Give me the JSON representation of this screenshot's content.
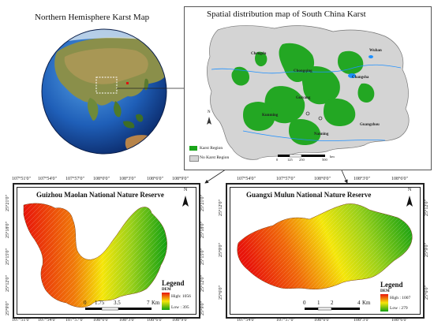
{
  "globe_panel": {
    "title": "Northern Hemisphere Karst Map"
  },
  "china_panel": {
    "title": "Spatial distribution map of South China Karst",
    "cities": [
      "Chengdu",
      "Wuhan",
      "Chongqing",
      "Changsha",
      "Guiyang",
      "Kunming",
      "Nanning",
      "Guangzhou"
    ],
    "legend": {
      "karst": "Karst Region",
      "non_karst": "No Karst Region"
    },
    "scale": {
      "labels": [
        "0",
        "125",
        "250",
        "500"
      ],
      "unit": "km"
    },
    "north": "N",
    "colors": {
      "karst": "#1aa51a",
      "non_karst": "#d4d4d4",
      "water": "#1e90ff"
    }
  },
  "guizhou_panel": {
    "title": "Guizhou Maolan National Nature Reserve",
    "top_ticks": [
      "107°51'0\"",
      "107°54'0\"",
      "107°57'0\"",
      "108°0'0\"",
      "108°3'0\"",
      "108°6'0\"",
      "108°9'0\""
    ],
    "bottom_ticks": [
      "107°51'0\"",
      "107°54'0\"",
      "107°57'0\"",
      "108°0'0\"",
      "108°3'0\"",
      "108°6'0\"",
      "108°9'0\""
    ],
    "left_ticks": [
      "25°21'0\"",
      "25°18'0\"",
      "25°15'0\"",
      "25°12'0\"",
      "25°9'0\""
    ],
    "right_ticks": [
      "25°21'0\"",
      "25°18'0\"",
      "25°15'0\"",
      "25°12'0\"",
      "25°9'0\""
    ],
    "legend": {
      "title": "Legend",
      "dem": "DEM",
      "high": "High: 1056",
      "low": "Low : 395"
    },
    "scale": {
      "labels": [
        "0",
        "1.75",
        "3.5",
        "7"
      ],
      "unit": "Km"
    },
    "north": "N"
  },
  "guangxi_panel": {
    "title": "Guangxi Mulun National Nature Reserve",
    "top_ticks": [
      "107°54'0\"",
      "107°57'0\"",
      "108°0'0\"",
      "108°3'0\"",
      "108°6'0\""
    ],
    "bottom_ticks": [
      "107°54'0\"",
      "107°57'0\"",
      "108°0'0\"",
      "108°3'0\"",
      "108°6'0\""
    ],
    "left_ticks": [
      "25°12'0\"",
      "25°9'0\"",
      "25°6'0\""
    ],
    "right_ticks": [
      "25°12'0\"",
      "25°9'0\"",
      "25°6'0\""
    ],
    "legend": {
      "title": "Legend",
      "dem": "DEM",
      "high": "High : 1007",
      "low": "Low : 279"
    },
    "scale": {
      "labels": [
        "0",
        "1",
        "2",
        "4"
      ],
      "unit": "Km"
    },
    "north": "N",
    "colors": {
      "high": "#e8140a",
      "mid": "#f5e60a",
      "low": "#12a012"
    }
  }
}
